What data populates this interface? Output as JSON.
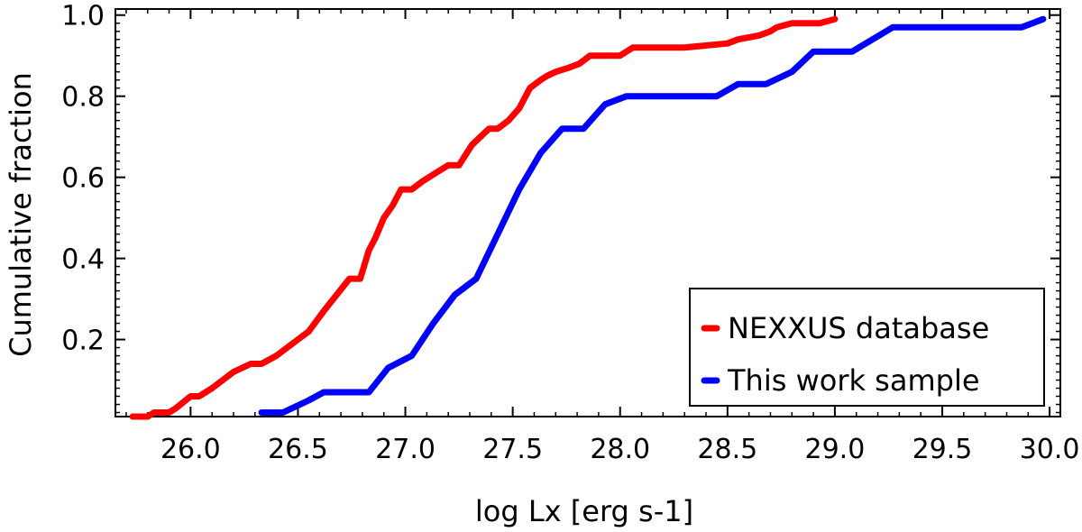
{
  "chart_data": {
    "type": "line",
    "title": "",
    "xlabel": "log Lx [erg s-1]",
    "ylabel": "Cumulative fraction",
    "xlim": [
      25.65,
      30.05
    ],
    "ylim": [
      0.01,
      1.015
    ],
    "x_ticks": [
      "26.0",
      "26.5",
      "27.0",
      "27.5",
      "28.0",
      "28.5",
      "29.0",
      "29.5",
      "30.0"
    ],
    "y_ticks": [
      "0.2",
      "0.4",
      "0.6",
      "0.8",
      "1.0"
    ],
    "grid": false,
    "legend_position": "bottom-right",
    "series": [
      {
        "name": "NEXXUS database",
        "color": "#ff0000",
        "x": [
          25.73,
          25.8,
          25.83,
          25.9,
          25.93,
          26.0,
          26.04,
          26.1,
          26.15,
          26.2,
          26.28,
          26.33,
          26.4,
          26.45,
          26.5,
          26.55,
          26.62,
          26.68,
          26.74,
          26.79,
          26.83,
          26.86,
          26.9,
          26.94,
          26.98,
          27.03,
          27.08,
          27.14,
          27.2,
          27.25,
          27.31,
          27.35,
          27.39,
          27.43,
          27.48,
          27.53,
          27.58,
          27.63,
          27.66,
          27.7,
          27.76,
          27.81,
          27.86,
          27.92,
          28.0,
          28.06,
          28.11,
          28.3,
          28.5,
          28.55,
          28.65,
          28.7,
          28.73,
          28.8,
          28.85,
          28.93,
          29.0
        ],
        "y": [
          0.01,
          0.01,
          0.02,
          0.02,
          0.03,
          0.06,
          0.06,
          0.08,
          0.1,
          0.12,
          0.14,
          0.14,
          0.16,
          0.18,
          0.2,
          0.22,
          0.27,
          0.31,
          0.35,
          0.35,
          0.42,
          0.45,
          0.5,
          0.53,
          0.57,
          0.57,
          0.59,
          0.61,
          0.63,
          0.63,
          0.68,
          0.7,
          0.72,
          0.72,
          0.74,
          0.77,
          0.82,
          0.84,
          0.85,
          0.86,
          0.87,
          0.88,
          0.9,
          0.9,
          0.9,
          0.92,
          0.92,
          0.92,
          0.93,
          0.94,
          0.95,
          0.96,
          0.97,
          0.98,
          0.98,
          0.98,
          0.99
        ]
      },
      {
        "name": "This work sample",
        "color": "#0000ff",
        "x": [
          26.33,
          26.43,
          26.55,
          26.62,
          26.83,
          26.92,
          27.03,
          27.13,
          27.23,
          27.33,
          27.43,
          27.53,
          27.63,
          27.73,
          27.83,
          27.93,
          28.03,
          28.13,
          28.45,
          28.55,
          28.68,
          28.8,
          28.9,
          29.0,
          29.08,
          29.27,
          29.87,
          29.97
        ],
        "y": [
          0.02,
          0.02,
          0.05,
          0.07,
          0.07,
          0.13,
          0.16,
          0.24,
          0.31,
          0.35,
          0.46,
          0.57,
          0.66,
          0.72,
          0.72,
          0.78,
          0.8,
          0.8,
          0.8,
          0.83,
          0.83,
          0.86,
          0.91,
          0.91,
          0.91,
          0.97,
          0.97,
          0.99
        ]
      }
    ]
  }
}
